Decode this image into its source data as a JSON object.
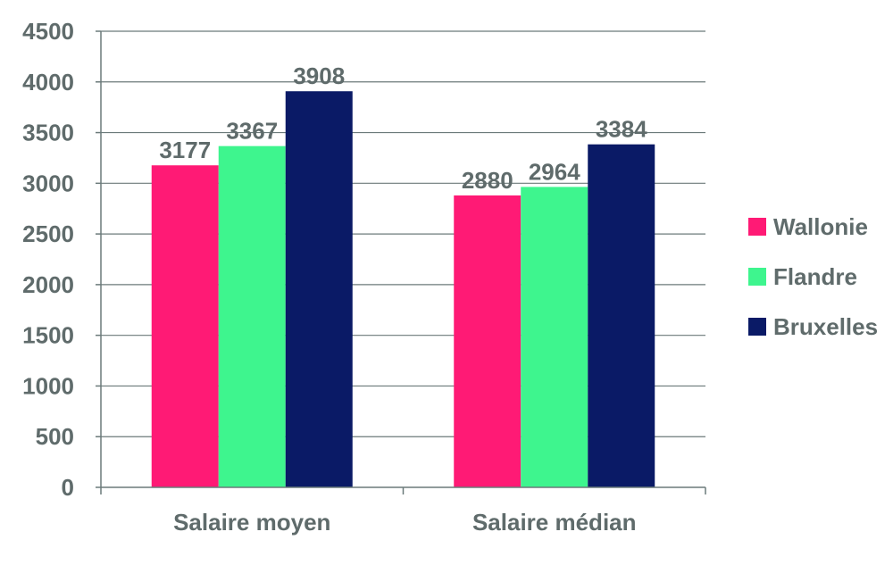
{
  "chart_data": {
    "type": "bar",
    "categories": [
      "Salaire moyen",
      "Salaire médian"
    ],
    "series": [
      {
        "name": "Wallonie",
        "color": "#ff1a75",
        "values": [
          3177,
          2880
        ]
      },
      {
        "name": "Flandre",
        "color": "#3ef58e",
        "values": [
          3367,
          2964
        ]
      },
      {
        "name": "Bruxelles",
        "color": "#0a1a66",
        "values": [
          3908,
          3384
        ]
      }
    ],
    "ylim": [
      0,
      4500
    ],
    "yticks": [
      "0",
      "500",
      "1000",
      "1500",
      "2000",
      "2500",
      "3000",
      "3500",
      "4000",
      "4500"
    ],
    "grid": true,
    "legend_position": "right",
    "data_labels": true
  }
}
